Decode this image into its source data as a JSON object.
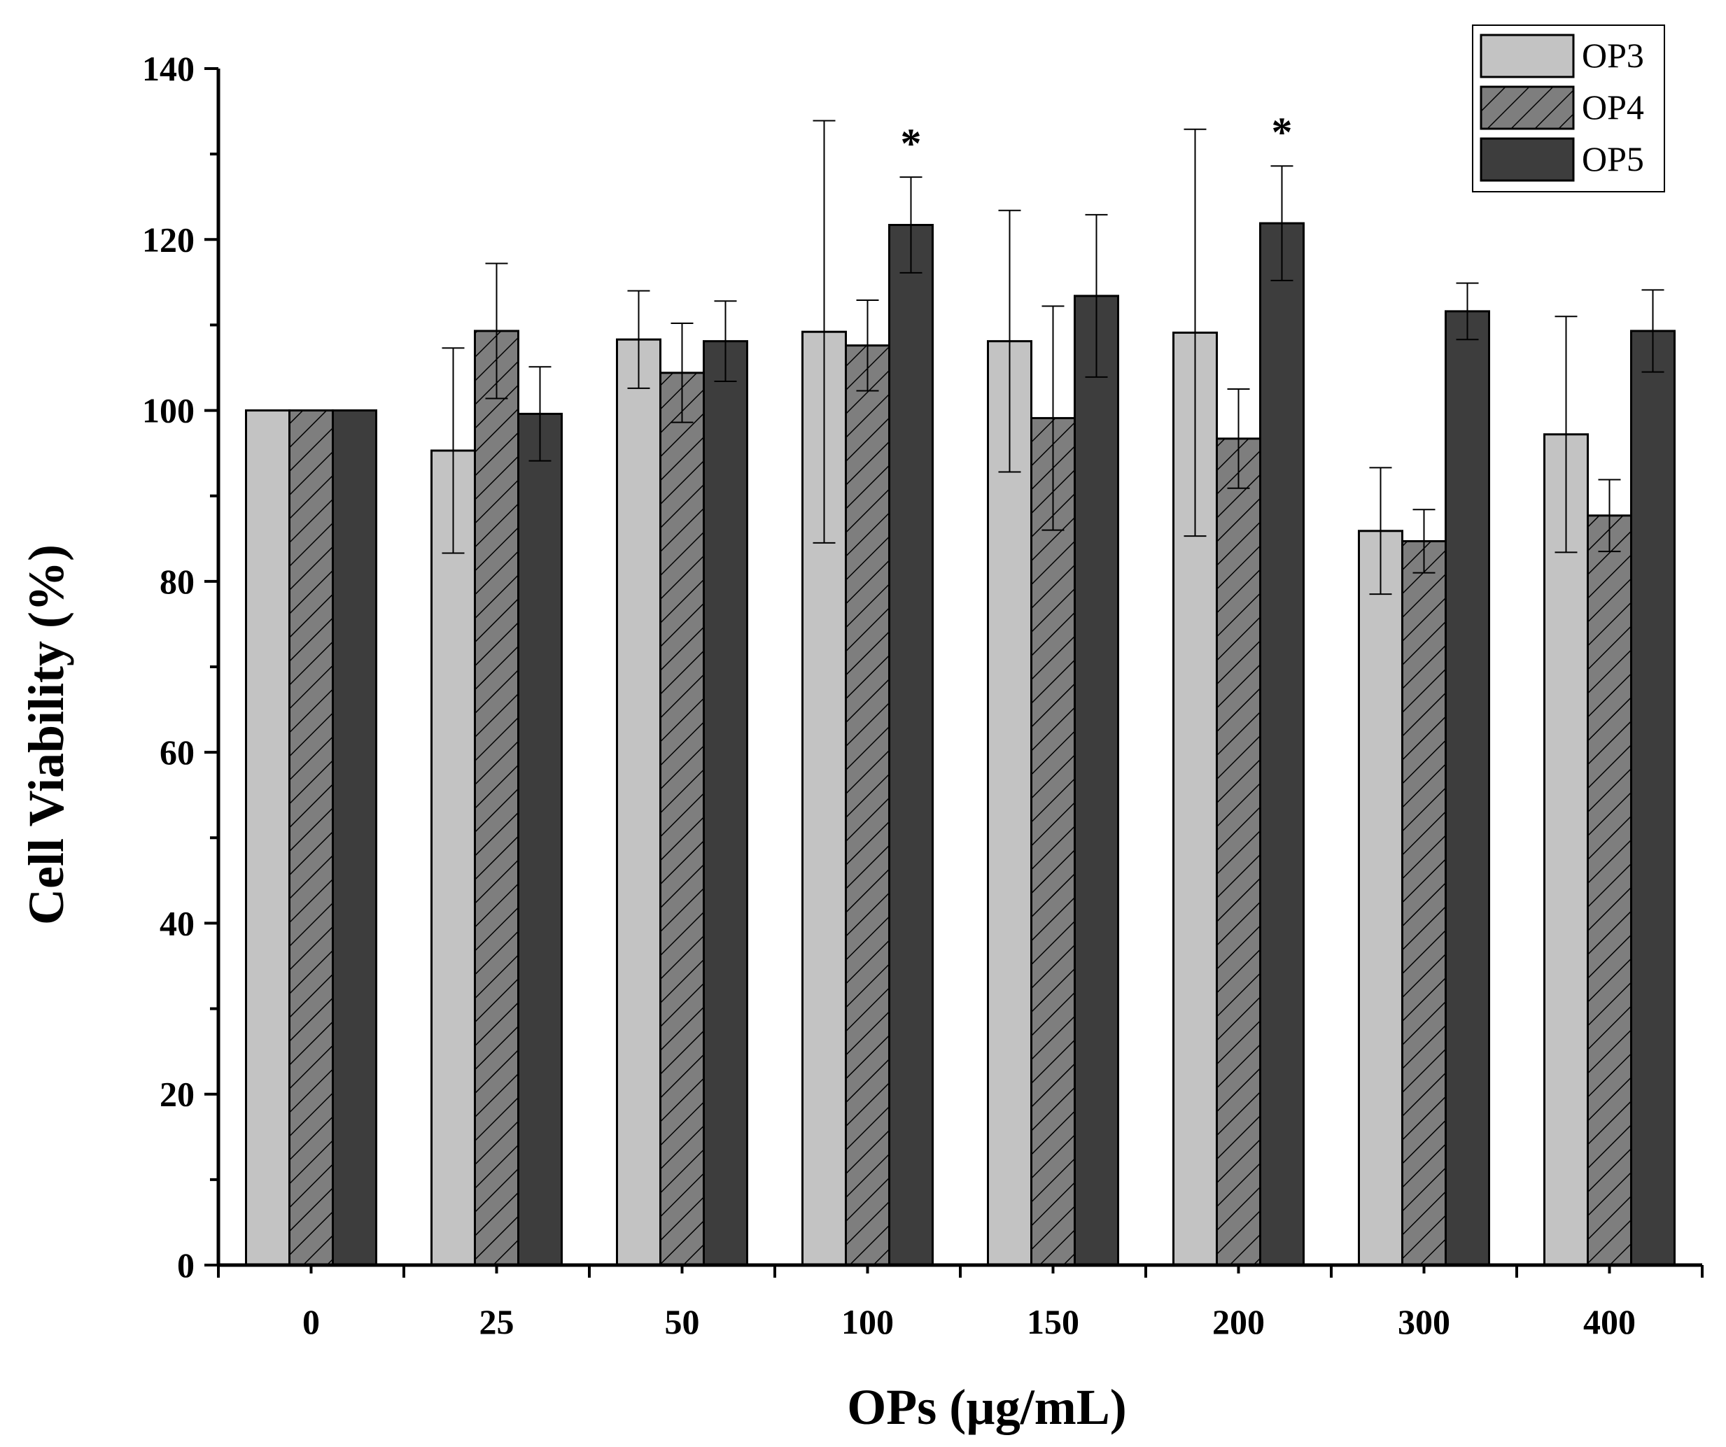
{
  "chart_data": {
    "type": "bar",
    "title": "",
    "xlabel": "OPs (µg/mL)",
    "ylabel": "Cell Viability (%)",
    "ylim": [
      0,
      140
    ],
    "yticks": [
      0,
      20,
      40,
      60,
      80,
      100,
      120,
      140
    ],
    "categories": [
      "0",
      "25",
      "50",
      "100",
      "150",
      "200",
      "300",
      "400"
    ],
    "legend_position": "top-right",
    "series": [
      {
        "name": "OP3",
        "color": "#c3c3c3",
        "pattern": "solid",
        "values": [
          100,
          95.3,
          108.3,
          109.2,
          108.1,
          109.1,
          85.9,
          97.2
        ],
        "errors": [
          0,
          12,
          5.7,
          24.7,
          15.3,
          23.8,
          7.4,
          13.8
        ]
      },
      {
        "name": "OP4",
        "color": "#7e7e7e",
        "pattern": "hatch",
        "values": [
          100,
          109.3,
          104.4,
          107.6,
          99.1,
          96.7,
          84.7,
          87.7
        ],
        "errors": [
          0,
          7.9,
          5.8,
          5.3,
          13.1,
          5.8,
          3.7,
          4.2
        ]
      },
      {
        "name": "OP5",
        "color": "#3d3d3d",
        "pattern": "solid",
        "values": [
          100,
          99.6,
          108.1,
          121.7,
          113.4,
          121.9,
          111.6,
          109.3
        ],
        "errors": [
          0,
          5.5,
          4.7,
          5.6,
          9.5,
          6.7,
          3.3,
          4.8
        ]
      }
    ],
    "annotations": [
      {
        "text": "*",
        "category": "100",
        "series": "OP5"
      },
      {
        "text": "*",
        "category": "200",
        "series": "OP5"
      }
    ]
  }
}
